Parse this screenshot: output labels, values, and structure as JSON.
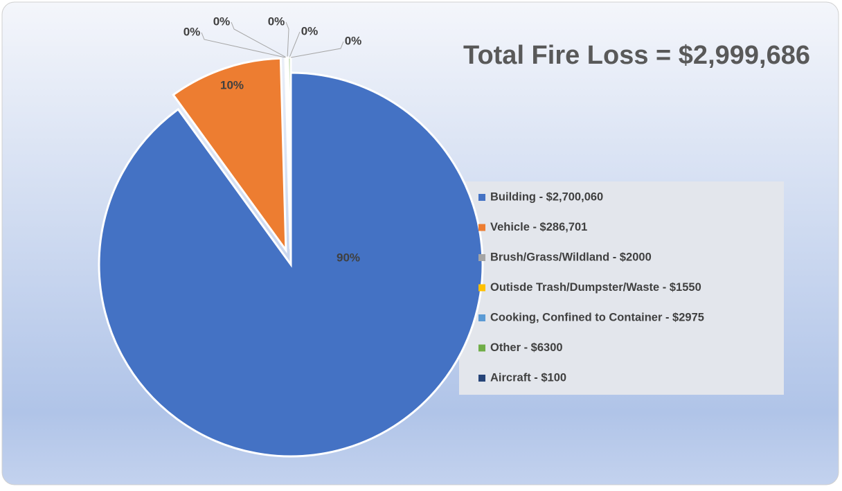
{
  "chart_data": {
    "type": "pie",
    "title": "Total Fire Loss = $2,999,686",
    "categories": [
      "Building - $2,700,060",
      "Vehicle - $286,701",
      "Brush/Grass/Wildland - $2000",
      "Outisde Trash/Dumpster/Waste - $1550",
      "Cooking, Confined to Container - $2975",
      "Other - $6300",
      "Aircraft - $100"
    ],
    "values": [
      90.01,
      9.56,
      0.07,
      0.05,
      0.1,
      0.21,
      0.003
    ],
    "value_labels": [
      "90%",
      "10%",
      "0%",
      "0%",
      "0%",
      "0%",
      "0%"
    ],
    "colors": [
      "#4472c4",
      "#ed7d31",
      "#a5a5a5",
      "#ffc000",
      "#5b9bd5",
      "#70ad47",
      "#264478"
    ],
    "legend": "right"
  }
}
